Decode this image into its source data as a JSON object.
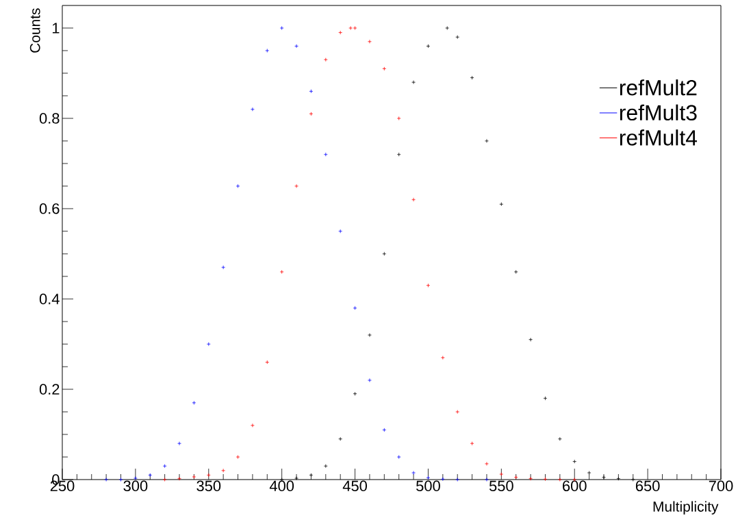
{
  "chart_data": {
    "type": "scatter",
    "xlabel": "Multiplicity",
    "ylabel": "Counts",
    "marker": "cross",
    "legend": "top right",
    "grid": false,
    "xlim": [
      250,
      700
    ],
    "xticks": [
      250,
      300,
      350,
      400,
      450,
      500,
      550,
      600,
      650,
      700
    ],
    "ylim": [
      0,
      1.05
    ],
    "yticks": [
      0,
      0.2,
      0.4,
      0.6,
      0.8,
      1
    ],
    "series": [
      {
        "name": "refMult2",
        "color": "#000000",
        "x": [
          400,
          410,
          420,
          430,
          440,
          450,
          460,
          470,
          480,
          490,
          500,
          513,
          520,
          530,
          540,
          550,
          560,
          570,
          580,
          590,
          600,
          610,
          620,
          630,
          640
        ],
        "values": [
          0,
          0.003,
          0.01,
          0.03,
          0.09,
          0.19,
          0.32,
          0.5,
          0.72,
          0.88,
          0.96,
          1.0,
          0.98,
          0.89,
          0.75,
          0.61,
          0.46,
          0.31,
          0.18,
          0.09,
          0.04,
          0.015,
          0.005,
          0.002,
          0
        ]
      },
      {
        "name": "refMult3",
        "color": "#0000ff",
        "x": [
          280,
          290,
          300,
          310,
          320,
          330,
          340,
          350,
          360,
          370,
          380,
          390,
          400,
          410,
          420,
          430,
          440,
          450,
          460,
          470,
          480,
          490,
          500,
          510,
          520,
          540
        ],
        "values": [
          0,
          0,
          0.003,
          0.01,
          0.03,
          0.08,
          0.17,
          0.3,
          0.47,
          0.65,
          0.82,
          0.95,
          1.0,
          0.96,
          0.86,
          0.72,
          0.55,
          0.38,
          0.22,
          0.11,
          0.05,
          0.015,
          0.004,
          0.001,
          0,
          0
        ]
      },
      {
        "name": "refMult4",
        "color": "#ff0000",
        "x": [
          320,
          330,
          340,
          350,
          360,
          370,
          380,
          390,
          400,
          410,
          420,
          430,
          440,
          447,
          450,
          460,
          470,
          480,
          490,
          500,
          510,
          520,
          530,
          540,
          550,
          560,
          570,
          580,
          590,
          600
        ],
        "values": [
          0,
          0.002,
          0.006,
          0.01,
          0.02,
          0.05,
          0.12,
          0.26,
          0.46,
          0.65,
          0.81,
          0.93,
          0.99,
          1.0,
          1.0,
          0.97,
          0.91,
          0.8,
          0.62,
          0.43,
          0.27,
          0.15,
          0.08,
          0.035,
          0.012,
          0.005,
          0.002,
          0.001,
          0,
          0
        ]
      }
    ]
  }
}
